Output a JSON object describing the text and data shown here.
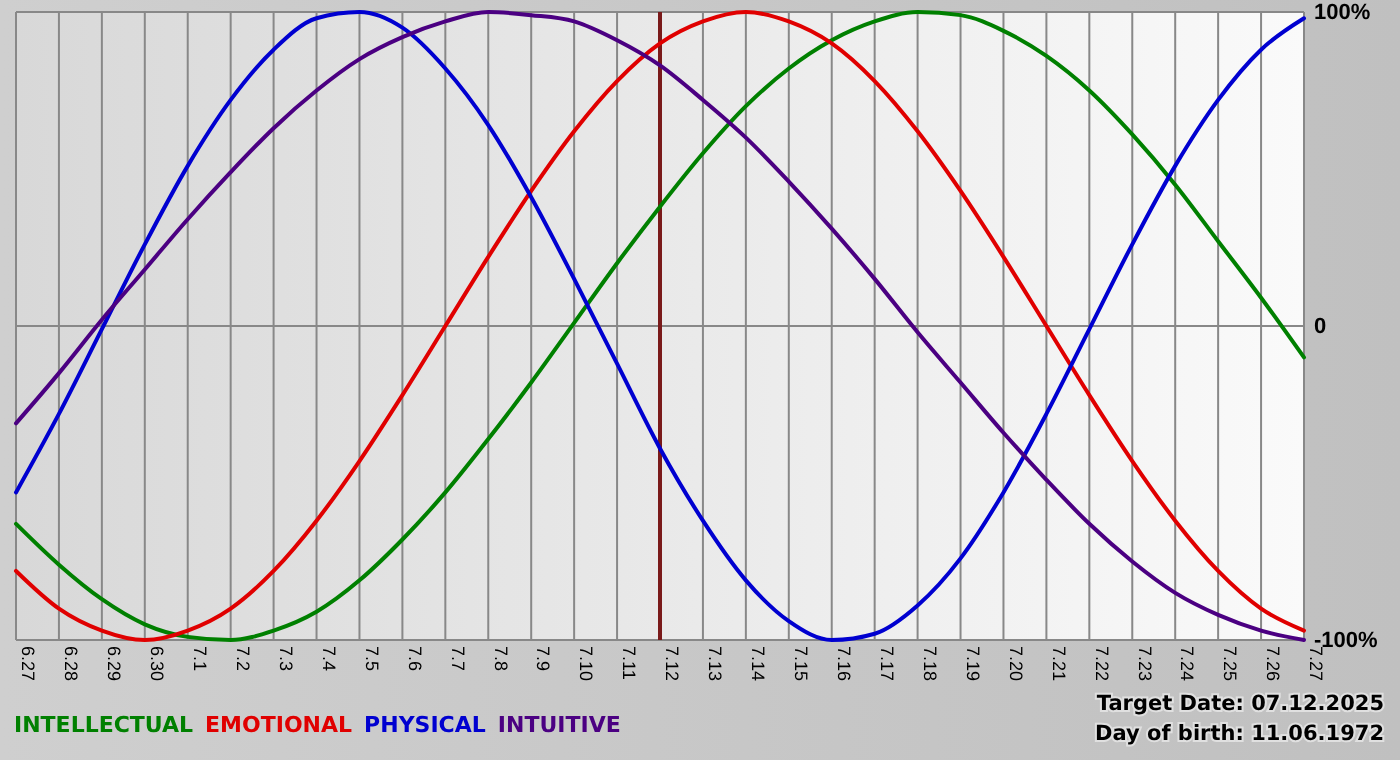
{
  "chart_data": {
    "type": "line",
    "categories": [
      "6.27",
      "6.28",
      "6.29",
      "6.30",
      "7.1",
      "7.2",
      "7.3",
      "7.4",
      "7.5",
      "7.6",
      "7.7",
      "7.8",
      "7.9",
      "7.10",
      "7.11",
      "7.12",
      "7.13",
      "7.14",
      "7.15",
      "7.16",
      "7.17",
      "7.18",
      "7.19",
      "7.20",
      "7.21",
      "7.22",
      "7.23",
      "7.24",
      "7.25",
      "7.26",
      "7.27"
    ],
    "series": [
      {
        "name": "INTELLECTUAL",
        "color": "#008000",
        "values": [
          -63,
          -76,
          -87,
          -95,
          -99,
          -100,
          -97,
          -91,
          -81,
          -68,
          -53,
          -36,
          -18,
          1,
          20,
          38,
          55,
          70,
          82,
          91,
          97,
          100,
          99,
          94,
          86,
          75,
          61,
          45,
          27,
          9,
          -10
        ]
      },
      {
        "name": "EMOTIONAL",
        "color": "#e00000",
        "values": [
          -78,
          -90,
          -97,
          -100,
          -97,
          -90,
          -78,
          -62,
          -43,
          -22,
          0,
          22,
          43,
          62,
          78,
          90,
          97,
          100,
          97,
          90,
          78,
          62,
          43,
          22,
          0,
          -22,
          -43,
          -62,
          -78,
          -90,
          -97
        ]
      },
      {
        "name": "PHYSICAL",
        "color": "#0000d0",
        "values": [
          -53,
          -28,
          -1,
          26,
          51,
          72,
          88,
          98,
          100,
          95,
          82,
          64,
          41,
          15,
          -12,
          -39,
          -62,
          -81,
          -94,
          -100,
          -98,
          -89,
          -74,
          -53,
          -28,
          -1,
          26,
          51,
          72,
          88,
          98
        ]
      },
      {
        "name": "INTUITIVE",
        "color": "#4b0082",
        "values": [
          -31,
          -15,
          2,
          18,
          34,
          49,
          63,
          75,
          85,
          92,
          97,
          100,
          99,
          97,
          91,
          83,
          72,
          60,
          46,
          31,
          15,
          -2,
          -18,
          -34,
          -49,
          -63,
          -75,
          -85,
          -92,
          -97,
          -100
        ]
      }
    ],
    "ylim": [
      -100,
      100
    ],
    "yticks": [
      {
        "value": -100,
        "label": "-100%"
      },
      0,
      {
        "value": 100,
        "label": "100%"
      }
    ],
    "grid": true,
    "legend": "bottom",
    "ref_lines": [
      {
        "axis": "x",
        "value": "7.12",
        "color": "#7a1a1a"
      }
    ],
    "annotations": [
      "Target Date: 07.12.2025",
      "Day of birth: 11.06.1972"
    ]
  }
}
